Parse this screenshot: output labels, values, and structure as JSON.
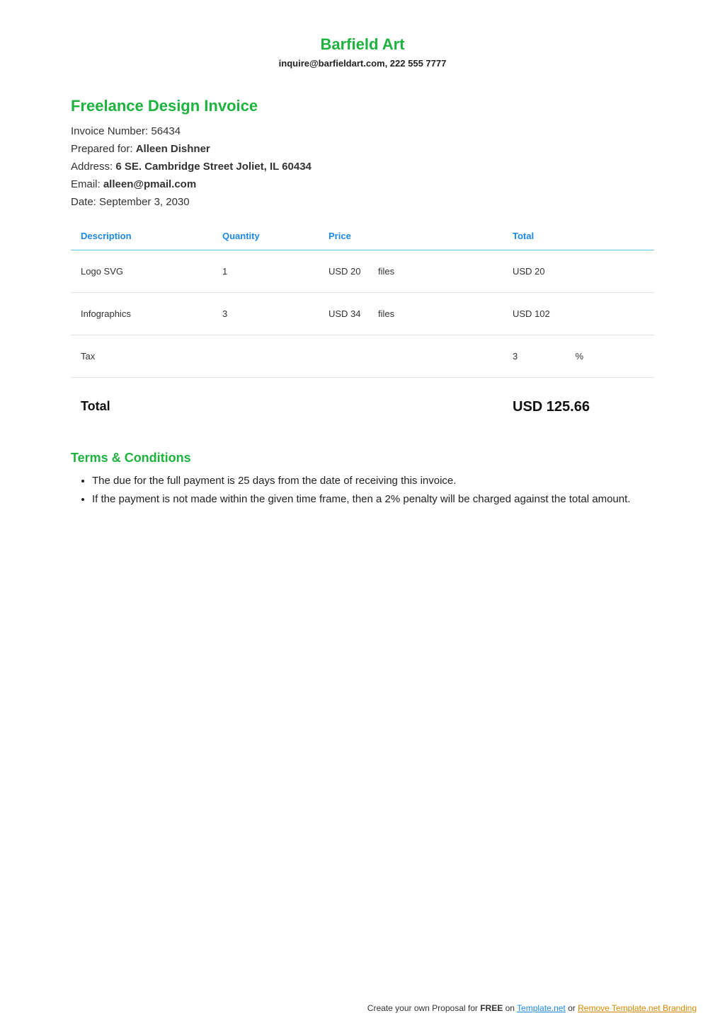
{
  "header": {
    "company_name": "Barfield Art",
    "contact": "inquire@barfieldart.com, 222 555 7777"
  },
  "invoice": {
    "title": "Freelance Design Invoice",
    "number_label": "Invoice Number: ",
    "number": "56434",
    "prepared_label": "Prepared for: ",
    "prepared_for": "Alleen Dishner",
    "address_label": "Address: ",
    "address": "6 SE. Cambridge Street Joliet, IL 60434",
    "email_label": "Email: ",
    "email": "alleen@pmail.com",
    "date_label": "Date: ",
    "date": "September 3, 2030"
  },
  "table": {
    "headers": {
      "description": "Description",
      "quantity": "Quantity",
      "price": "Price",
      "total": "Total"
    },
    "rows": [
      {
        "description": "Logo SVG",
        "quantity": "1",
        "price": "USD 20",
        "unit": "files",
        "total": "USD 20"
      },
      {
        "description": "Infographics",
        "quantity": "3",
        "price": "USD 34",
        "unit": "files",
        "total": "USD 102"
      }
    ],
    "tax": {
      "label": "Tax",
      "value": "3",
      "unit": "%"
    },
    "total_label": "Total",
    "grand_total": "USD 125.66"
  },
  "terms": {
    "title": "Terms & Conditions",
    "items": [
      "The due for the full payment is 25 days from the date of receiving this invoice.",
      "If the payment is not made within the given time frame, then a 2% penalty will be charged against the total amount."
    ]
  },
  "footer": {
    "prefix": "Create your own Proposal for ",
    "free": "FREE",
    "on": " on    ",
    "link1": "Template.net",
    "or": "  or  ",
    "link2": "Remove Template.net Branding"
  },
  "colors": {
    "brand_green": "#1eb23e",
    "header_blue": "#1e88e5",
    "header_border": "#64c8f0",
    "row_border": "#e4e4e4",
    "footer_orange": "#d68a00"
  }
}
